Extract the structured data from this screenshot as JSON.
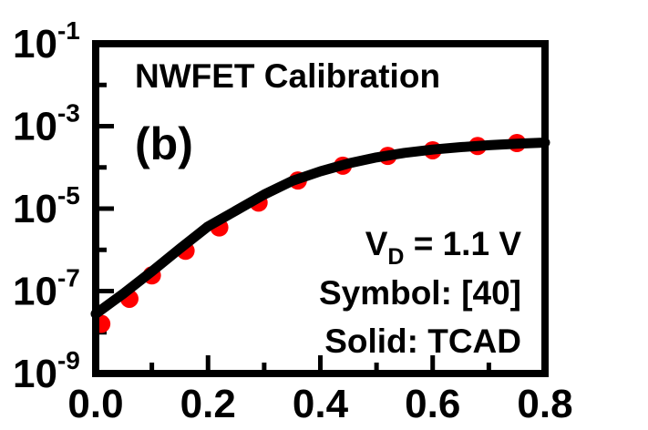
{
  "chart_data": {
    "type": "line",
    "title": "NWFET Calibration",
    "panel_label": "(b)",
    "annotations": {
      "condition_main": "V",
      "condition_sub": "D",
      "condition_rest": " = 1.1 V",
      "symbol_note": "Symbol: [40]",
      "solid_note": "Solid: TCAD"
    },
    "xlabel": "",
    "ylabel": "",
    "xlim": [
      0,
      0.8
    ],
    "ylim_log10": [
      -9,
      -1
    ],
    "y_scale": "log",
    "x_ticks": [
      "0.0",
      "0.2",
      "0.4",
      "0.6",
      "0.8"
    ],
    "y_ticks": [
      {
        "base": "10",
        "exp": "-1"
      },
      {
        "base": "10",
        "exp": "-3"
      },
      {
        "base": "10",
        "exp": "-5"
      },
      {
        "base": "10",
        "exp": "-7"
      },
      {
        "base": "10",
        "exp": "-9"
      }
    ],
    "series": [
      {
        "style": "markers",
        "color": "#ff0000",
        "x": [
          0.01,
          0.06,
          0.1,
          0.16,
          0.22,
          0.29,
          0.36,
          0.44,
          0.52,
          0.6,
          0.68,
          0.75
        ],
        "y": [
          1.6e-08,
          6.5e-08,
          2.4e-07,
          9.5e-07,
          3.5e-06,
          1.4e-05,
          4.8e-05,
          0.00011,
          0.00019,
          0.00026,
          0.00033,
          0.00039
        ]
      },
      {
        "style": "line",
        "color": "#000000",
        "x": [
          0.0,
          0.05,
          0.1,
          0.15,
          0.2,
          0.25,
          0.3,
          0.35,
          0.4,
          0.45,
          0.5,
          0.55,
          0.6,
          0.65,
          0.7,
          0.75,
          0.8
        ],
        "y": [
          2.8e-08,
          8.8e-08,
          3e-07,
          1.07e-06,
          3.7e-06,
          9e-06,
          2.2e-05,
          4.7e-05,
          8e-05,
          0.000125,
          0.000175,
          0.000225,
          0.00027,
          0.00031,
          0.000345,
          0.000375,
          0.0004
        ]
      }
    ]
  }
}
